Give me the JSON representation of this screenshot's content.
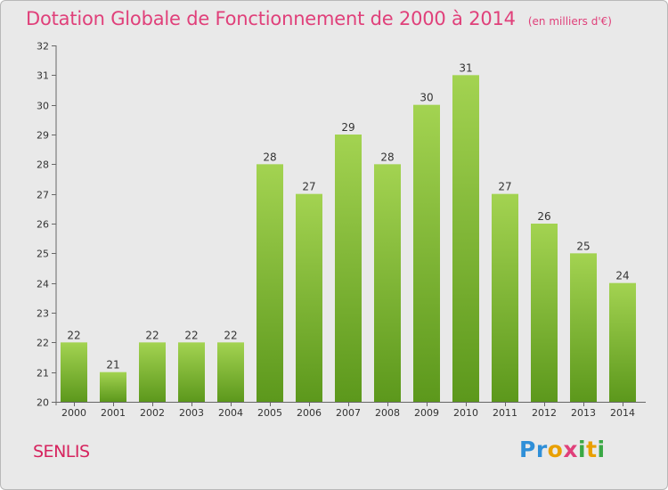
{
  "title": "Dotation Globale de Fonctionnement de 2000 à 2014",
  "subtitle": "(en milliers d'€)",
  "commune": "SENLIS",
  "logo": {
    "text": "Proxiti",
    "letters": [
      "P",
      "r",
      "o",
      "x",
      "i",
      "t",
      "i"
    ]
  },
  "colors": {
    "title": "#e0407a",
    "bar_top": "#9fd04e",
    "bar_bottom": "#5e9a1d",
    "background": "#e9e9e9"
  },
  "chart_data": {
    "type": "bar",
    "title": "Dotation Globale de Fonctionnement de 2000 à 2014",
    "xlabel": "",
    "ylabel": "",
    "categories": [
      "2000",
      "2001",
      "2002",
      "2003",
      "2004",
      "2005",
      "2006",
      "2007",
      "2008",
      "2009",
      "2010",
      "2011",
      "2012",
      "2013",
      "2014"
    ],
    "values": [
      22,
      21,
      22,
      22,
      22,
      28,
      27,
      29,
      28,
      30,
      31,
      27,
      26,
      25,
      24
    ],
    "ylim": [
      20,
      32
    ],
    "yticks": [
      20,
      21,
      22,
      23,
      24,
      25,
      26,
      27,
      28,
      29,
      30,
      31,
      32
    ],
    "grid": false
  }
}
